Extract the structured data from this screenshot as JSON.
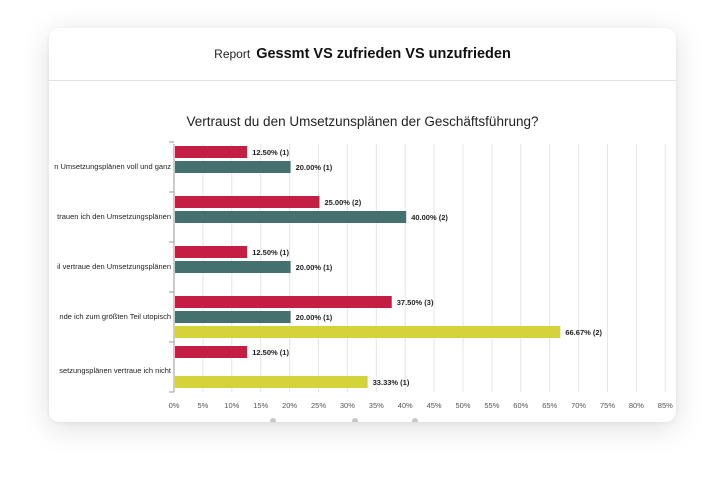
{
  "header": {
    "report_label": "Report",
    "title": "Gessmt VS zufrieden VS unzufrieden"
  },
  "colors": {
    "series_red": "#c41e45",
    "series_teal": "#44706f",
    "series_yellow": "#d4d33a",
    "grid": "#e5e5e5"
  },
  "chart_data": {
    "type": "bar",
    "orientation": "horizontal",
    "title": "Vertraust du den Umsetzunsplänen der Geschäftsführung?",
    "categories": [
      "n Umsetzungsplänen voll und ganz",
      "trauen ich den Umsetzungsplänen",
      "il vertraue den Umsetzungsplänen",
      "nde ich zum größten Teil utopisch",
      "setzungsplänen vertraue ich nicht"
    ],
    "series": [
      {
        "values": [
          12.5,
          25.0,
          12.5,
          37.5,
          12.5
        ],
        "labels": [
          "12.50% (1)",
          "25.00% (2)",
          "12.50% (1)",
          "37.50% (3)",
          "12.50% (1)"
        ]
      },
      {
        "values": [
          20.0,
          40.0,
          20.0,
          20.0,
          null
        ],
        "labels": [
          "20.00% (1)",
          "40.00% (2)",
          "20.00% (1)",
          "20.00% (1)",
          ""
        ]
      },
      {
        "values": [
          null,
          null,
          null,
          66.67,
          33.33
        ],
        "labels": [
          "",
          "",
          "",
          "66.67% (2)",
          "33.33% (1)"
        ]
      }
    ],
    "x_ticks": [
      "0%",
      "5%",
      "10%",
      "15%",
      "20%",
      "25%",
      "30%",
      "35%",
      "40%",
      "45%",
      "50%",
      "55%",
      "60%",
      "65%",
      "70%",
      "75%",
      "80%",
      "85%"
    ],
    "xlim": [
      0,
      85
    ],
    "grid": true
  }
}
